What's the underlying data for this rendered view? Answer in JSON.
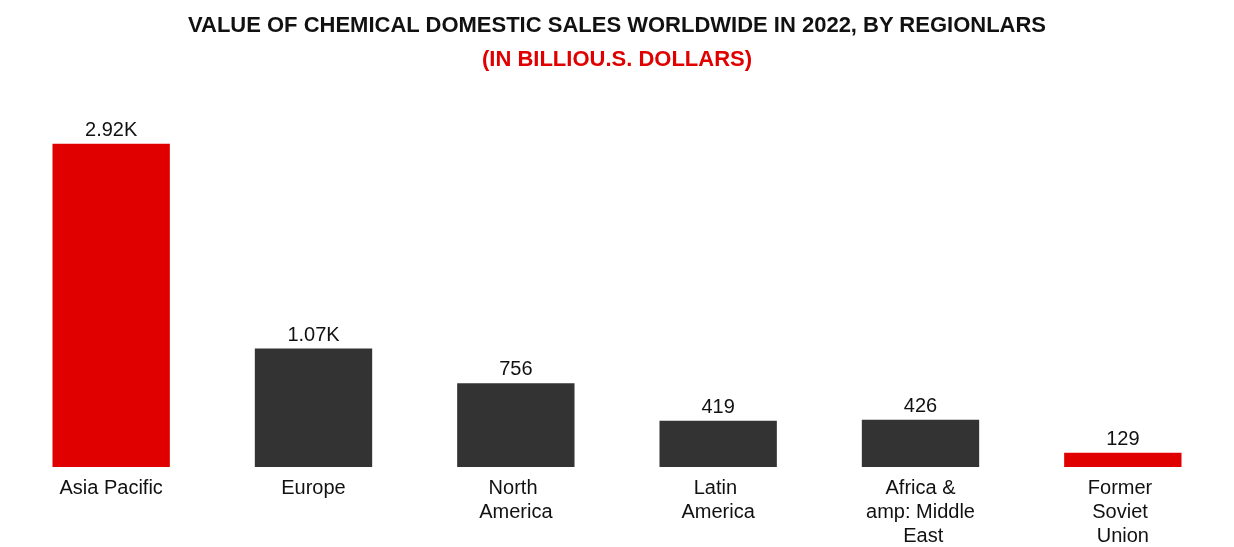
{
  "chart_data": {
    "type": "bar",
    "title": "VALUE OF CHEMICAL DOMESTIC SALES WORLDWIDE IN 2022, BY REGIONLARS",
    "subtitle": "(IN BILLIOU.S. DOLLARS)",
    "categories": [
      "Asia Pacific",
      "Europe",
      "North America",
      "Latin America",
      "Africa &amp: Middle East",
      "Former Soviet Union"
    ],
    "values": [
      2920,
      1070,
      756,
      419,
      426,
      129
    ],
    "colors": [
      "#e00000",
      "#333333",
      "#333333",
      "#333333",
      "#333333",
      "#e00000"
    ],
    "value_labels": [
      "2.92K",
      "1.07K",
      "756",
      "419",
      "426",
      "129"
    ]
  }
}
